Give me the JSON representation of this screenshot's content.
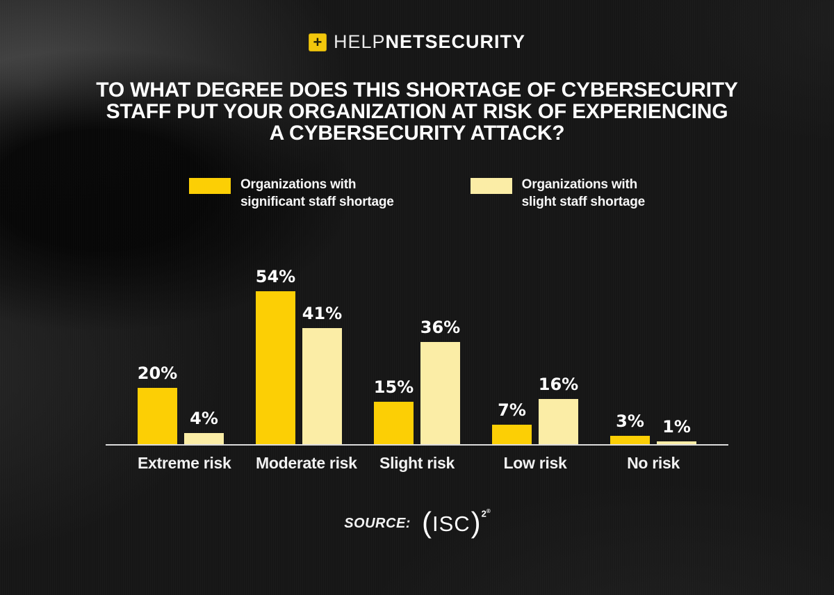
{
  "logo": {
    "plus": "+",
    "help": "HELP",
    "net": "NET",
    "security": "SECURITY"
  },
  "title_lines": [
    "TO WHAT DEGREE DOES THIS SHORTAGE OF CYBERSECURITY",
    "STAFF PUT YOUR ORGANIZATION AT RISK OF EXPERIENCING",
    "A CYBERSECURITY ATTACK?"
  ],
  "legend": [
    {
      "line1": "Organizations with",
      "line2": "significant staff shortage",
      "color": "#fccf05"
    },
    {
      "line1": "Organizations with",
      "line2": "slight staff shortage",
      "color": "#fbeda6"
    }
  ],
  "chart_data": {
    "type": "bar",
    "title": "To what degree does this shortage of cybersecurity staff put your organization at risk of experiencing a cybersecurity attack?",
    "categories": [
      "Extreme risk",
      "Moderate risk",
      "Slight risk",
      "Low risk",
      "No risk"
    ],
    "series": [
      {
        "name": "Organizations with significant staff shortage",
        "color": "#fccf05",
        "values": [
          20,
          54,
          15,
          7,
          3
        ]
      },
      {
        "name": "Organizations with slight staff shortage",
        "color": "#fbeda6",
        "values": [
          4,
          41,
          36,
          16,
          1
        ]
      }
    ],
    "value_suffix": "%",
    "xlabel": "",
    "ylabel": "",
    "ylim": [
      0,
      60
    ],
    "grid": false,
    "legend_position": "top",
    "data_labels": true
  },
  "source": {
    "label": "SOURCE:",
    "paren_open": "(",
    "isc": "ISC",
    "paren_close": ")",
    "sup": "2",
    "reg": "®"
  },
  "colors": {
    "background": "#161616",
    "gold": "#fccf05",
    "cream": "#fbeda6",
    "axis_line": "#dcdcdc",
    "text": "#ffffff"
  }
}
